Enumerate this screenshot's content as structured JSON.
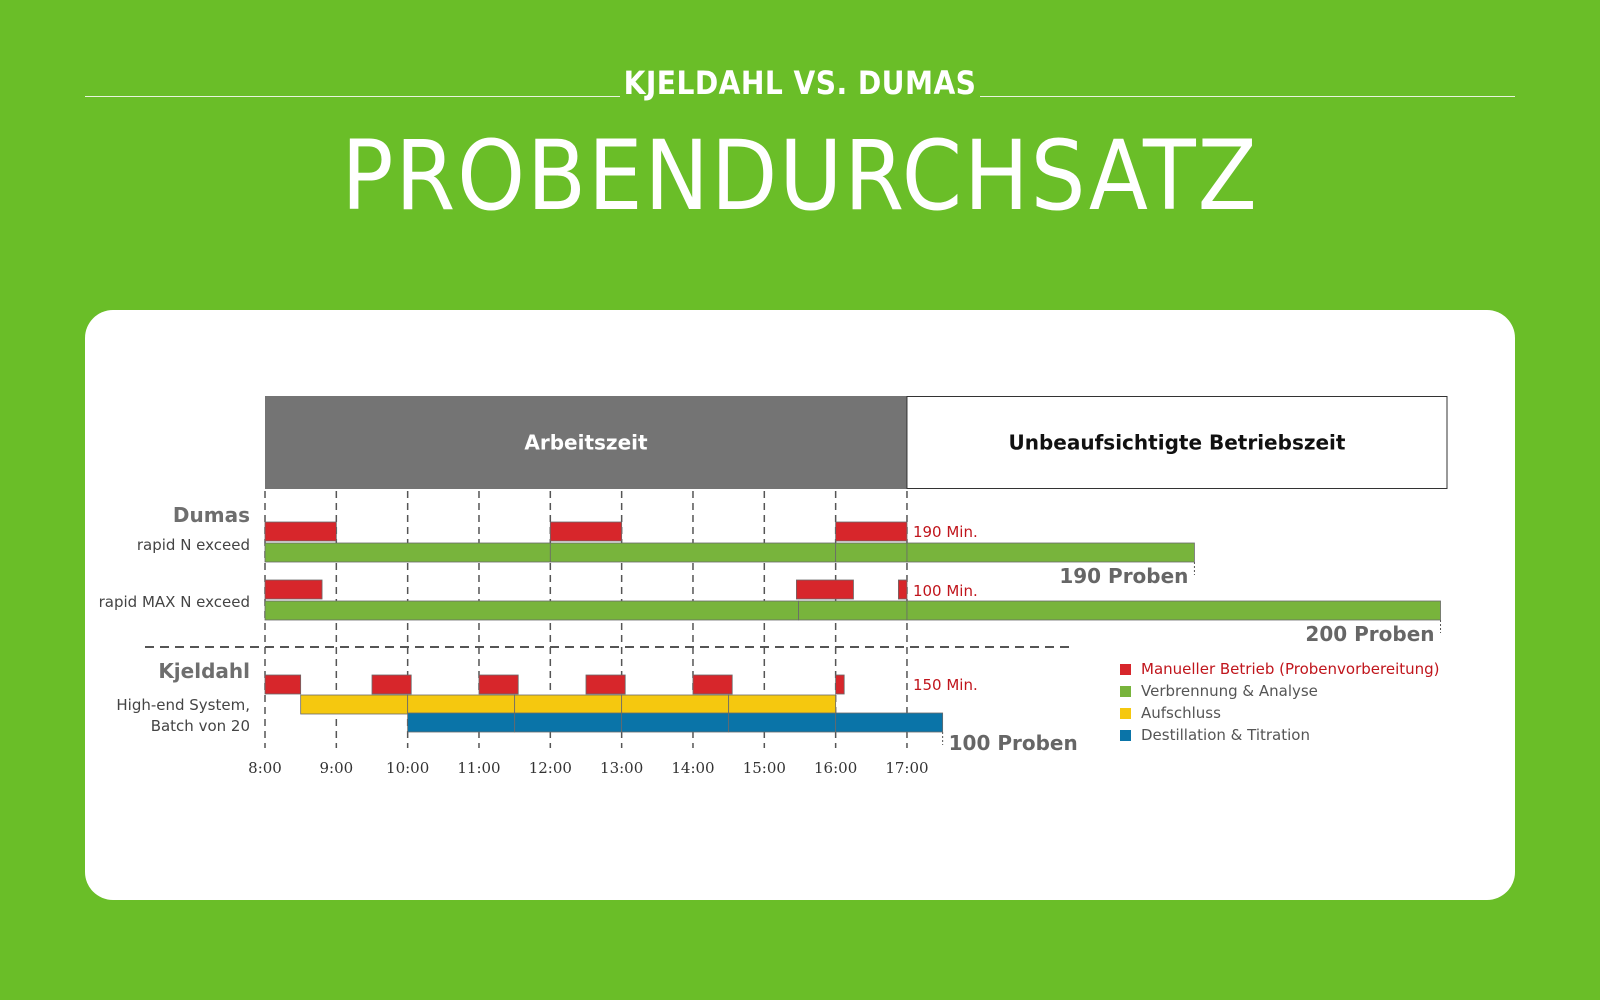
{
  "header": {
    "subtitle": "KJELDAHL VS. DUMAS",
    "title": "PROBENDURCHSATZ"
  },
  "colors": {
    "background": "#6abe28",
    "manual": "#d7262b",
    "combustion": "#78b43c",
    "digestion": "#f5c80f",
    "distillation": "#0a74a8",
    "worktime_band": "#747474",
    "label_red": "#c0151c",
    "label_gray": "#666666"
  },
  "chart_data": {
    "type": "gantt",
    "x_axis": {
      "unit": "hour",
      "ticks": [
        "8:00",
        "9:00",
        "10:00",
        "11:00",
        "12:00",
        "13:00",
        "14:00",
        "15:00",
        "16:00",
        "17:00"
      ],
      "range": [
        8,
        24.6
      ]
    },
    "bands": [
      {
        "label": "Arbeitszeit",
        "start": 8,
        "end": 17
      },
      {
        "label": "Unbeaufsichtigte Betriebszeit",
        "start": 17,
        "end": 24.6
      }
    ],
    "groups": [
      {
        "group": "Dumas",
        "rows": [
          {
            "label": "rapid N exceed",
            "manual_time": "190 Min.",
            "result": "190 Proben",
            "end": 21.03,
            "segments": [
              {
                "phase": "manual",
                "start": 8,
                "end": 9
              },
              {
                "phase": "manual",
                "start": 12,
                "end": 13
              },
              {
                "phase": "manual",
                "start": 16,
                "end": 17
              },
              {
                "phase": "combustion",
                "start": 8,
                "end": 12
              },
              {
                "phase": "combustion",
                "start": 12,
                "end": 16
              },
              {
                "phase": "combustion",
                "start": 16,
                "end": 17
              },
              {
                "phase": "combustion",
                "start": 17,
                "end": 21.03
              }
            ]
          },
          {
            "label": "rapid MAX N exceed",
            "manual_time": "100 Min.",
            "result": "200 Proben",
            "end": 24.48,
            "segments": [
              {
                "phase": "manual",
                "start": 8,
                "end": 8.8
              },
              {
                "phase": "manual",
                "start": 15.45,
                "end": 16.25
              },
              {
                "phase": "manual",
                "start": 16.88,
                "end": 17
              },
              {
                "phase": "combustion",
                "start": 8,
                "end": 15.48
              },
              {
                "phase": "combustion",
                "start": 15.48,
                "end": 17
              },
              {
                "phase": "combustion",
                "start": 17,
                "end": 24.48
              }
            ]
          }
        ]
      },
      {
        "group": "Kjeldahl",
        "rows": [
          {
            "label_lines": [
              "High-end System,",
              "Batch von 20"
            ],
            "manual_time": "150 Min.",
            "result": "100 Proben",
            "end": 17.5,
            "segments": [
              {
                "phase": "manual",
                "start": 8,
                "end": 8.5
              },
              {
                "phase": "manual",
                "start": 9.5,
                "end": 10.05
              },
              {
                "phase": "manual",
                "start": 11,
                "end": 11.55
              },
              {
                "phase": "manual",
                "start": 12.5,
                "end": 13.05
              },
              {
                "phase": "manual",
                "start": 14,
                "end": 14.55
              },
              {
                "phase": "manual",
                "start": 16,
                "end": 16.12
              },
              {
                "phase": "digestion",
                "start": 8.5,
                "end": 10
              },
              {
                "phase": "digestion",
                "start": 10,
                "end": 11.5
              },
              {
                "phase": "digestion",
                "start": 11.5,
                "end": 13
              },
              {
                "phase": "digestion",
                "start": 13,
                "end": 14.5
              },
              {
                "phase": "digestion",
                "start": 14.5,
                "end": 16
              },
              {
                "phase": "distillation",
                "start": 10,
                "end": 11.5
              },
              {
                "phase": "distillation",
                "start": 11.5,
                "end": 13
              },
              {
                "phase": "distillation",
                "start": 13,
                "end": 14.5
              },
              {
                "phase": "distillation",
                "start": 14.5,
                "end": 16
              },
              {
                "phase": "distillation",
                "start": 16,
                "end": 17.5
              }
            ]
          }
        ]
      }
    ],
    "legend": {
      "position": "bottom-right",
      "items": [
        {
          "label": "Manueller Betrieb (Probenvorbereitung)",
          "phase": "manual"
        },
        {
          "label": "Verbrennung & Analyse",
          "phase": "combustion"
        },
        {
          "label": "Aufschluss",
          "phase": "digestion"
        },
        {
          "label": "Destillation & Titration",
          "phase": "distillation"
        }
      ]
    }
  }
}
